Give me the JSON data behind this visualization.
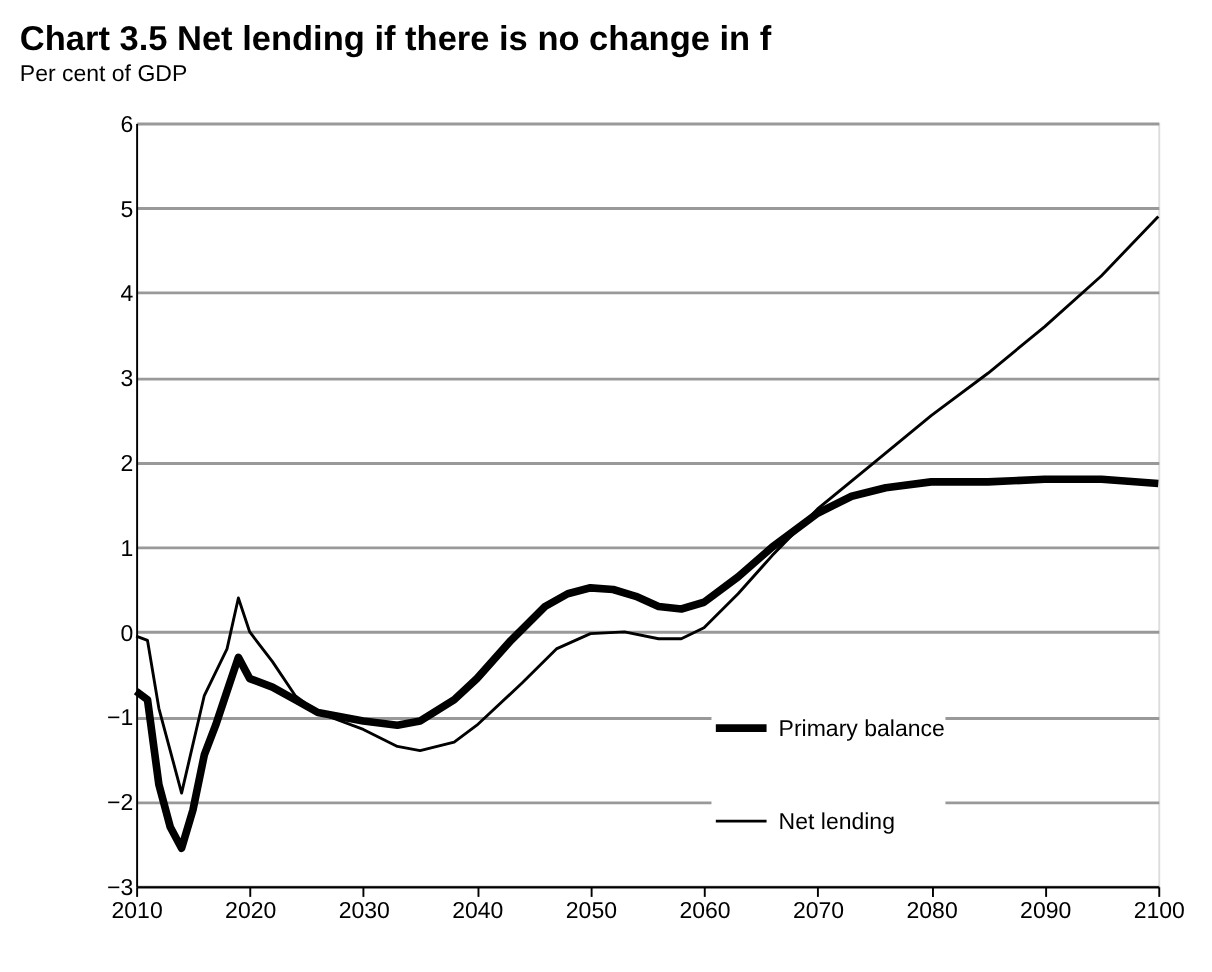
{
  "chart_data": {
    "type": "line",
    "title": "Chart 3.5 Net lending if there is no change in f",
    "subtitle": "Per cent of GDP",
    "series": [
      {
        "name": "Primary balance",
        "color": "#000000",
        "x": [
          2010,
          2011,
          2012,
          2013,
          2014,
          2015,
          2016,
          2017,
          2018,
          2019,
          2020,
          2022,
          2024,
          2026,
          2028,
          2030,
          2033,
          2035,
          2038,
          2040,
          2043,
          2046,
          2048,
          2050,
          2052,
          2054,
          2056,
          2058,
          2060,
          2063,
          2066,
          2070,
          2073,
          2076,
          2080,
          2085,
          2090,
          2095,
          2100
        ],
        "values": [
          -0.7,
          -0.8,
          -1.8,
          -2.3,
          -2.55,
          -2.1,
          -1.45,
          -1.1,
          -0.7,
          -0.3,
          -0.55,
          -0.65,
          -0.8,
          -0.95,
          -1.0,
          -1.05,
          -1.1,
          -1.05,
          -0.8,
          -0.55,
          -0.1,
          0.3,
          0.45,
          0.52,
          0.5,
          0.42,
          0.3,
          0.27,
          0.35,
          0.65,
          1.0,
          1.4,
          1.6,
          1.7,
          1.77,
          1.77,
          1.8,
          1.8,
          1.75
        ]
      },
      {
        "name": "Net lending",
        "color": "#000000",
        "x": [
          2010,
          2011,
          2012,
          2014,
          2016,
          2018,
          2019,
          2020,
          2022,
          2024,
          2026,
          2030,
          2033,
          2035,
          2038,
          2040,
          2044,
          2047,
          2050,
          2053,
          2056,
          2058,
          2060,
          2063,
          2066,
          2070,
          2075,
          2080,
          2085,
          2090,
          2095,
          2100
        ],
        "values": [
          -0.05,
          -0.1,
          -0.9,
          -1.9,
          -0.75,
          -0.2,
          0.4,
          0.0,
          -0.35,
          -0.75,
          -0.95,
          -1.15,
          -1.35,
          -1.4,
          -1.3,
          -1.1,
          -0.6,
          -0.2,
          -0.02,
          0.0,
          -0.08,
          -0.08,
          0.05,
          0.45,
          0.9,
          1.45,
          2.0,
          2.55,
          3.05,
          3.6,
          4.2,
          4.9
        ]
      }
    ],
    "xlim": [
      2010,
      2100
    ],
    "xticks": [
      2010,
      2020,
      2030,
      2040,
      2050,
      2060,
      2070,
      2080,
      2090,
      2100
    ],
    "ylim": [
      -3,
      6
    ],
    "yticks": [
      -3,
      -2,
      -1,
      0,
      1,
      2,
      3,
      4,
      5,
      6
    ],
    "grid": "y",
    "legend": "bottom right",
    "marker": "none",
    "line_style": "solid"
  }
}
